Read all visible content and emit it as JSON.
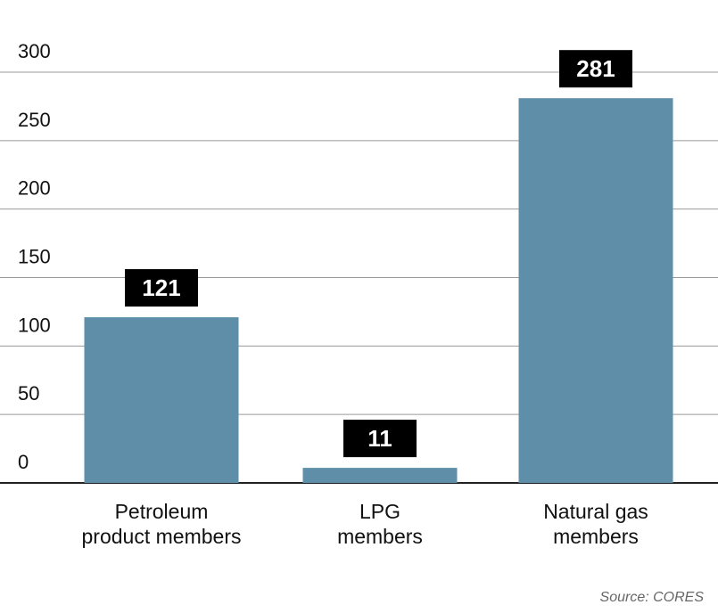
{
  "chart_data": {
    "type": "bar",
    "categories": [
      [
        "Petroleum",
        "product members"
      ],
      [
        "LPG",
        "members"
      ],
      [
        "Natural gas",
        "members"
      ]
    ],
    "values": [
      121,
      11,
      281
    ],
    "data_labels": [
      "121",
      "11",
      "281"
    ],
    "yticks": [
      0,
      50,
      100,
      150,
      200,
      250,
      300
    ],
    "ytick_labels": [
      "0",
      "50",
      "100",
      "150",
      "200",
      "250",
      "300"
    ],
    "ylim": [
      0,
      300
    ],
    "grid": true,
    "title": "",
    "xlabel": "",
    "ylabel": "",
    "bar_color": "#5f8fa8",
    "label_box_color": "#000000"
  },
  "source": "Source: CORES"
}
